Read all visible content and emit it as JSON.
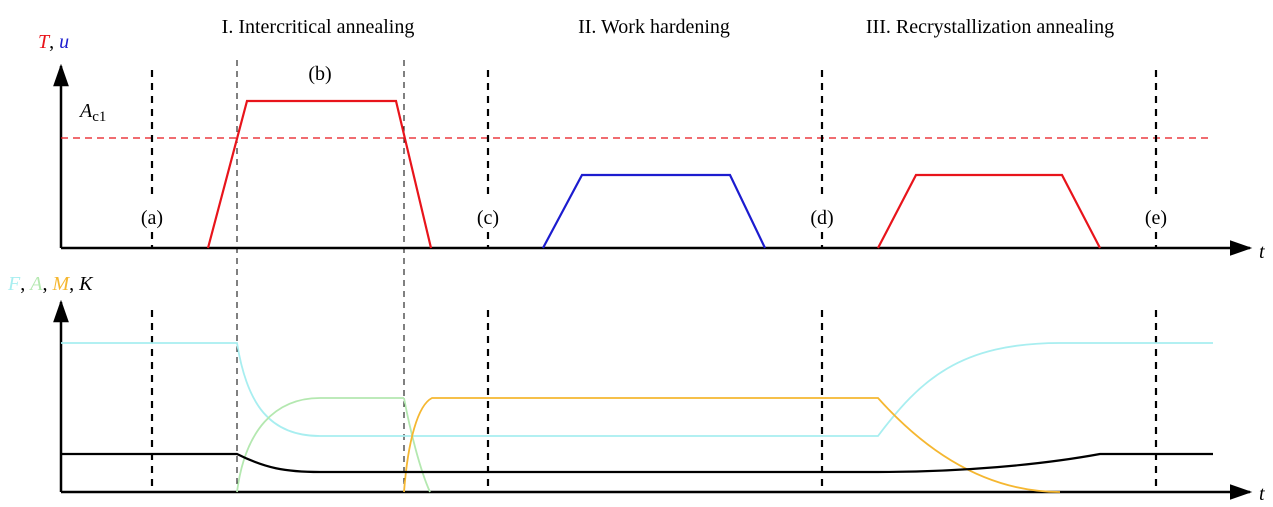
{
  "phases": [
    {
      "label": "I. Intercritical annealing"
    },
    {
      "label": "II. Work hardening"
    },
    {
      "label": "III. Recrystallization annealing"
    }
  ],
  "markers": [
    "(a)",
    "(b)",
    "(c)",
    "(d)",
    "(e)"
  ],
  "top_axis": {
    "y_label_parts": [
      {
        "text": "T",
        "color": "#e8141b",
        "italic": true
      },
      {
        "text": ", ",
        "color": "#000000",
        "italic": false
      },
      {
        "text": "u",
        "color": "#1c1ccf",
        "italic": true
      }
    ],
    "x_label": "t"
  },
  "threshold": {
    "symbol": "A",
    "subscript": "c1",
    "color": "#e8141b"
  },
  "bottom_axis": {
    "y_label_parts": [
      {
        "text": "F",
        "color": "#a8eef0",
        "italic": true
      },
      {
        "text": ", ",
        "color": "#000000",
        "italic": false
      },
      {
        "text": "A",
        "color": "#b4e8b0",
        "italic": true
      },
      {
        "text": ", ",
        "color": "#000000",
        "italic": false
      },
      {
        "text": "M",
        "color": "#f5b731",
        "italic": true
      },
      {
        "text": ", ",
        "color": "#000000",
        "italic": false
      },
      {
        "text": "K",
        "color": "#000000",
        "italic": true
      }
    ],
    "x_label": "t"
  },
  "colors": {
    "temperature": "#e8141b",
    "deformation": "#1c1ccf",
    "ferrite": "#a8eef0",
    "austenite": "#b4e8b0",
    "martensite": "#f5b731",
    "k_curve": "#000000"
  },
  "curves": {
    "temperature": "red",
    "deformation": "blue",
    "ferrite": "light-cyan",
    "austenite": "light-green",
    "martensite": "orange",
    "k": "black"
  }
}
